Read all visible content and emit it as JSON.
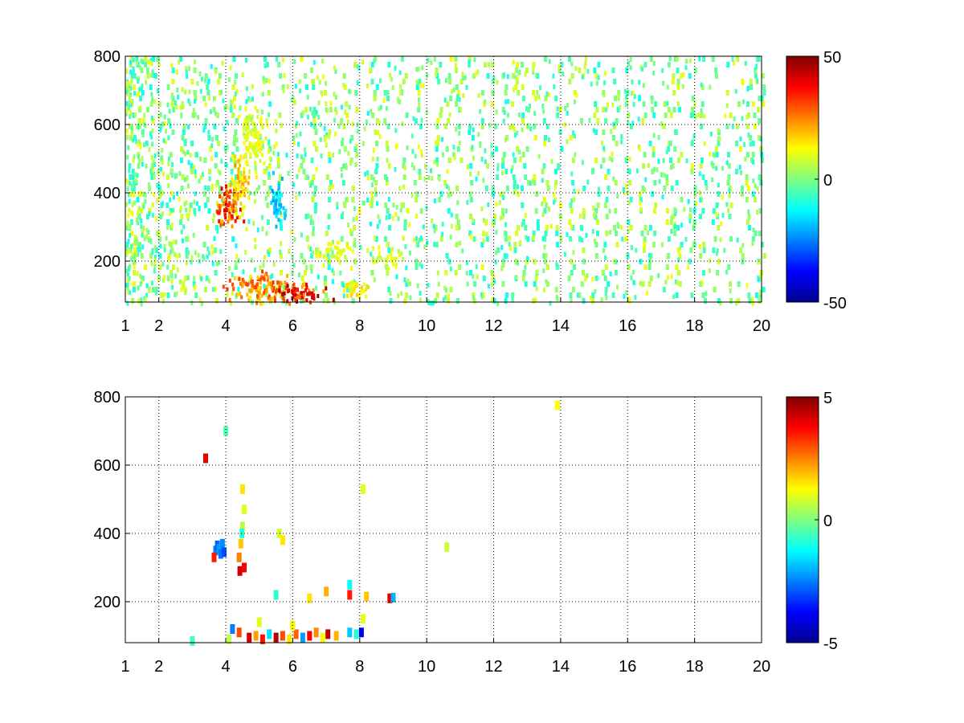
{
  "chart_data": [
    {
      "type": "heatmap",
      "title": "",
      "xlabel": "",
      "ylabel": "",
      "xlim": [
        1,
        20
      ],
      "ylim": [
        80,
        800
      ],
      "grid": true,
      "colormap": "jet",
      "x_ticks": [
        1,
        2,
        4,
        6,
        8,
        10,
        12,
        14,
        16,
        18,
        20
      ],
      "y_ticks": [
        200,
        400,
        600,
        800
      ],
      "colorbar": {
        "range": [
          -50,
          50
        ],
        "ticks": [
          50,
          0,
          -50
        ],
        "placement": "right"
      },
      "patterns": {
        "vertical_streaks_x": [
          1.15,
          1.3,
          1.5,
          1.7,
          1.95,
          2.3,
          2.7,
          3.0,
          3.4,
          3.7,
          4.2,
          5.2,
          5.6,
          6.3,
          6.6,
          7.0,
          7.5,
          7.8,
          8.4,
          8.8,
          9.3,
          9.7,
          10.3,
          10.6,
          10.9,
          11.3,
          11.7,
          12.0,
          12.3,
          12.6,
          12.9,
          13.2,
          13.5,
          13.9,
          14.3,
          14.6,
          15.0,
          15.3,
          15.6,
          16.0,
          16.4,
          16.7,
          17.1,
          17.3,
          17.5,
          17.9,
          18.2,
          18.6,
          19.0,
          19.3,
          19.6,
          19.8,
          19.95
        ],
        "blobs": [
          {
            "x": 4.0,
            "y": 360,
            "value": 35,
            "spread_x": 0.35,
            "spread_y": 60
          },
          {
            "x": 4.4,
            "y": 420,
            "value": 20,
            "spread_x": 0.3,
            "spread_y": 80
          },
          {
            "x": 4.8,
            "y": 560,
            "value": 12,
            "spread_x": 0.35,
            "spread_y": 90
          },
          {
            "x": 5.5,
            "y": 380,
            "value": -20,
            "spread_x": 0.25,
            "spread_y": 60
          },
          {
            "x": 5.0,
            "y": 130,
            "value": 28,
            "spread_x": 0.9,
            "spread_y": 40
          },
          {
            "x": 6.2,
            "y": 110,
            "value": 40,
            "spread_x": 0.7,
            "spread_y": 30
          },
          {
            "x": 7.2,
            "y": 230,
            "value": 12,
            "spread_x": 0.5,
            "spread_y": 25
          },
          {
            "x": 8.8,
            "y": 210,
            "value": 10,
            "spread_x": 0.35,
            "spread_y": 20
          },
          {
            "x": 7.8,
            "y": 120,
            "value": 15,
            "spread_x": 0.4,
            "spread_y": 25
          }
        ]
      }
    },
    {
      "type": "heatmap",
      "title": "",
      "xlabel": "",
      "ylabel": "",
      "xlim": [
        1,
        20
      ],
      "ylim": [
        80,
        800
      ],
      "grid": true,
      "colormap": "jet",
      "x_ticks": [
        1,
        2,
        4,
        6,
        8,
        10,
        12,
        14,
        16,
        18,
        20
      ],
      "y_ticks": [
        200,
        400,
        600,
        800
      ],
      "colorbar": {
        "range": [
          -5,
          5
        ],
        "ticks": [
          5,
          0,
          -5
        ],
        "placement": "right"
      },
      "points": [
        {
          "x": 3.7,
          "y": 350,
          "value": -2.5
        },
        {
          "x": 3.75,
          "y": 365,
          "value": -2.8
        },
        {
          "x": 3.8,
          "y": 355,
          "value": -2.2
        },
        {
          "x": 3.85,
          "y": 340,
          "value": -2.6
        },
        {
          "x": 3.9,
          "y": 370,
          "value": -2.4
        },
        {
          "x": 3.95,
          "y": 345,
          "value": -3.0
        },
        {
          "x": 3.65,
          "y": 330,
          "value": 3.5
        },
        {
          "x": 3.4,
          "y": 620,
          "value": 4.0
        },
        {
          "x": 4.0,
          "y": 700,
          "value": -0.5
        },
        {
          "x": 4.5,
          "y": 530,
          "value": 1.5
        },
        {
          "x": 4.55,
          "y": 470,
          "value": 1.0
        },
        {
          "x": 4.5,
          "y": 420,
          "value": 0.5
        },
        {
          "x": 4.45,
          "y": 370,
          "value": 1.8
        },
        {
          "x": 4.4,
          "y": 330,
          "value": 2.5
        },
        {
          "x": 4.42,
          "y": 290,
          "value": 4.2
        },
        {
          "x": 4.55,
          "y": 300,
          "value": 3.8
        },
        {
          "x": 4.48,
          "y": 400,
          "value": -0.8
        },
        {
          "x": 5.6,
          "y": 400,
          "value": 0.8
        },
        {
          "x": 5.7,
          "y": 380,
          "value": 1.5
        },
        {
          "x": 5.5,
          "y": 220,
          "value": -0.8
        },
        {
          "x": 6.5,
          "y": 210,
          "value": 1.5
        },
        {
          "x": 7.0,
          "y": 230,
          "value": 2.0
        },
        {
          "x": 7.7,
          "y": 250,
          "value": -1.2
        },
        {
          "x": 7.7,
          "y": 220,
          "value": 3.5
        },
        {
          "x": 8.2,
          "y": 215,
          "value": 1.8
        },
        {
          "x": 8.9,
          "y": 210,
          "value": 4.0
        },
        {
          "x": 9.0,
          "y": 212,
          "value": -2.0
        },
        {
          "x": 8.1,
          "y": 530,
          "value": 1.0
        },
        {
          "x": 10.6,
          "y": 360,
          "value": 0.7
        },
        {
          "x": 13.9,
          "y": 775,
          "value": 1.2
        },
        {
          "x": 3.0,
          "y": 85,
          "value": -0.6
        },
        {
          "x": 4.2,
          "y": 120,
          "value": -2.5
        },
        {
          "x": 4.4,
          "y": 110,
          "value": 3.0
        },
        {
          "x": 4.7,
          "y": 95,
          "value": 4.2
        },
        {
          "x": 4.9,
          "y": 100,
          "value": 2.2
        },
        {
          "x": 5.1,
          "y": 90,
          "value": 3.6
        },
        {
          "x": 5.3,
          "y": 105,
          "value": -1.5
        },
        {
          "x": 5.5,
          "y": 95,
          "value": 4.5
        },
        {
          "x": 5.7,
          "y": 100,
          "value": 3.0
        },
        {
          "x": 5.9,
          "y": 90,
          "value": 1.5
        },
        {
          "x": 6.1,
          "y": 105,
          "value": 2.8
        },
        {
          "x": 6.3,
          "y": 95,
          "value": -2.2
        },
        {
          "x": 6.5,
          "y": 100,
          "value": 3.8
        },
        {
          "x": 6.7,
          "y": 110,
          "value": 2.4
        },
        {
          "x": 6.9,
          "y": 95,
          "value": 1.2
        },
        {
          "x": 7.05,
          "y": 105,
          "value": 4.4
        },
        {
          "x": 7.3,
          "y": 100,
          "value": 2.0
        },
        {
          "x": 7.7,
          "y": 110,
          "value": -1.8
        },
        {
          "x": 7.9,
          "y": 105,
          "value": -0.9
        },
        {
          "x": 8.05,
          "y": 110,
          "value": -3.8
        },
        {
          "x": 8.1,
          "y": 150,
          "value": 1.0
        },
        {
          "x": 4.1,
          "y": 90,
          "value": 0.6
        },
        {
          "x": 6.0,
          "y": 130,
          "value": 1.3
        },
        {
          "x": 5.0,
          "y": 140,
          "value": 0.9
        }
      ]
    }
  ]
}
